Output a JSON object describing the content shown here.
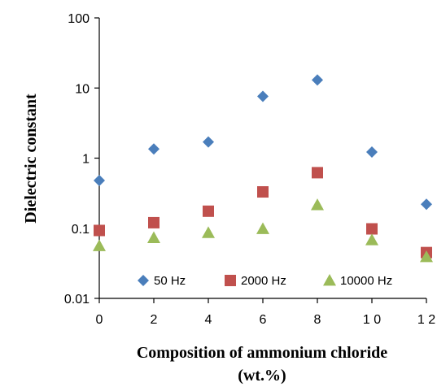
{
  "chart_data": {
    "type": "scatter",
    "title": "",
    "xlabel": "Composition of ammonium chloride (wt.%)",
    "xlabel_lines": [
      "Composition of ammonium chloride",
      "(wt.%)"
    ],
    "ylabel": "Dielectric constant",
    "xlim": [
      0,
      12
    ],
    "ylim": [
      0.01,
      100
    ],
    "yscale": "log",
    "grid": false,
    "legend_position": "bottom-inside",
    "x_ticks": [
      {
        "value": 0,
        "label": "0"
      },
      {
        "value": 2,
        "label": "2"
      },
      {
        "value": 4,
        "label": "4"
      },
      {
        "value": 6,
        "label": "6"
      },
      {
        "value": 8,
        "label": "8"
      },
      {
        "value": 10,
        "label": "1 0"
      },
      {
        "value": 12,
        "label": "1 2"
      }
    ],
    "y_ticks": [
      {
        "value": 0.01,
        "label": "0.01"
      },
      {
        "value": 0.1,
        "label": "0.1"
      },
      {
        "value": 1,
        "label": "1"
      },
      {
        "value": 10,
        "label": "10"
      },
      {
        "value": 100,
        "label": "100"
      }
    ],
    "series": [
      {
        "name": "50 Hz",
        "marker": "diamond",
        "color": "#4a7ebb",
        "x": [
          0,
          2,
          4,
          6,
          8,
          10,
          12
        ],
        "y": [
          0.48,
          1.35,
          1.7,
          7.6,
          13.0,
          1.22,
          0.22
        ]
      },
      {
        "name": "2000 Hz",
        "marker": "square",
        "color": "#c0504d",
        "x": [
          0,
          2,
          4,
          6,
          8,
          10,
          12
        ],
        "y": [
          0.093,
          0.12,
          0.175,
          0.33,
          0.62,
          0.098,
          0.045
        ]
      },
      {
        "name": "10000 Hz",
        "marker": "triangle",
        "color": "#9bbb59",
        "x": [
          0,
          2,
          4,
          6,
          8,
          10,
          12
        ],
        "y": [
          0.056,
          0.073,
          0.086,
          0.098,
          0.215,
          0.068,
          0.039
        ]
      }
    ]
  }
}
